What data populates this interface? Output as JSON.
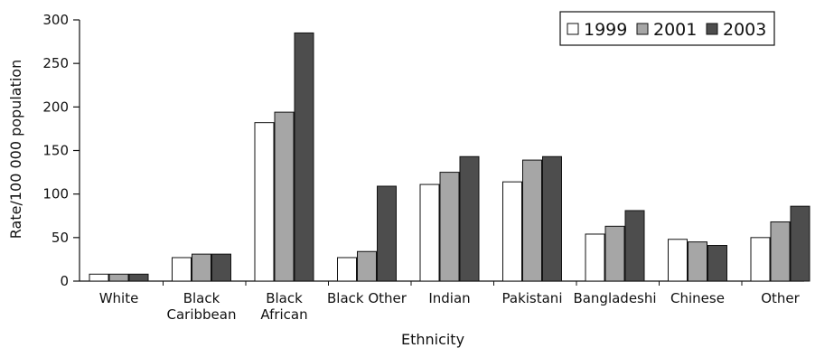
{
  "chart_data": {
    "type": "bar",
    "title": "",
    "xlabel": "Ethnicity",
    "ylabel": "Rate/100 000 population",
    "ylim": [
      0,
      300
    ],
    "yticks": [
      0,
      50,
      100,
      150,
      200,
      250,
      300
    ],
    "grid": false,
    "legend_position": "top-right",
    "categories": [
      [
        "White"
      ],
      [
        "Black",
        "Caribbean"
      ],
      [
        "Black",
        "African"
      ],
      [
        "Black Other"
      ],
      [
        "Indian"
      ],
      [
        "Pakistani"
      ],
      [
        "Bangladeshi"
      ],
      [
        "Chinese"
      ],
      [
        "Other"
      ]
    ],
    "series": [
      {
        "name": "1999",
        "color": "#ffffff",
        "values": [
          8,
          27,
          182,
          27,
          111,
          114,
          54,
          48,
          50
        ]
      },
      {
        "name": "2001",
        "color": "#a6a6a6",
        "values": [
          8,
          31,
          194,
          34,
          125,
          139,
          63,
          45,
          68
        ]
      },
      {
        "name": "2003",
        "color": "#4d4d4d",
        "values": [
          8,
          31,
          285,
          109,
          143,
          143,
          81,
          41,
          86
        ]
      }
    ]
  }
}
